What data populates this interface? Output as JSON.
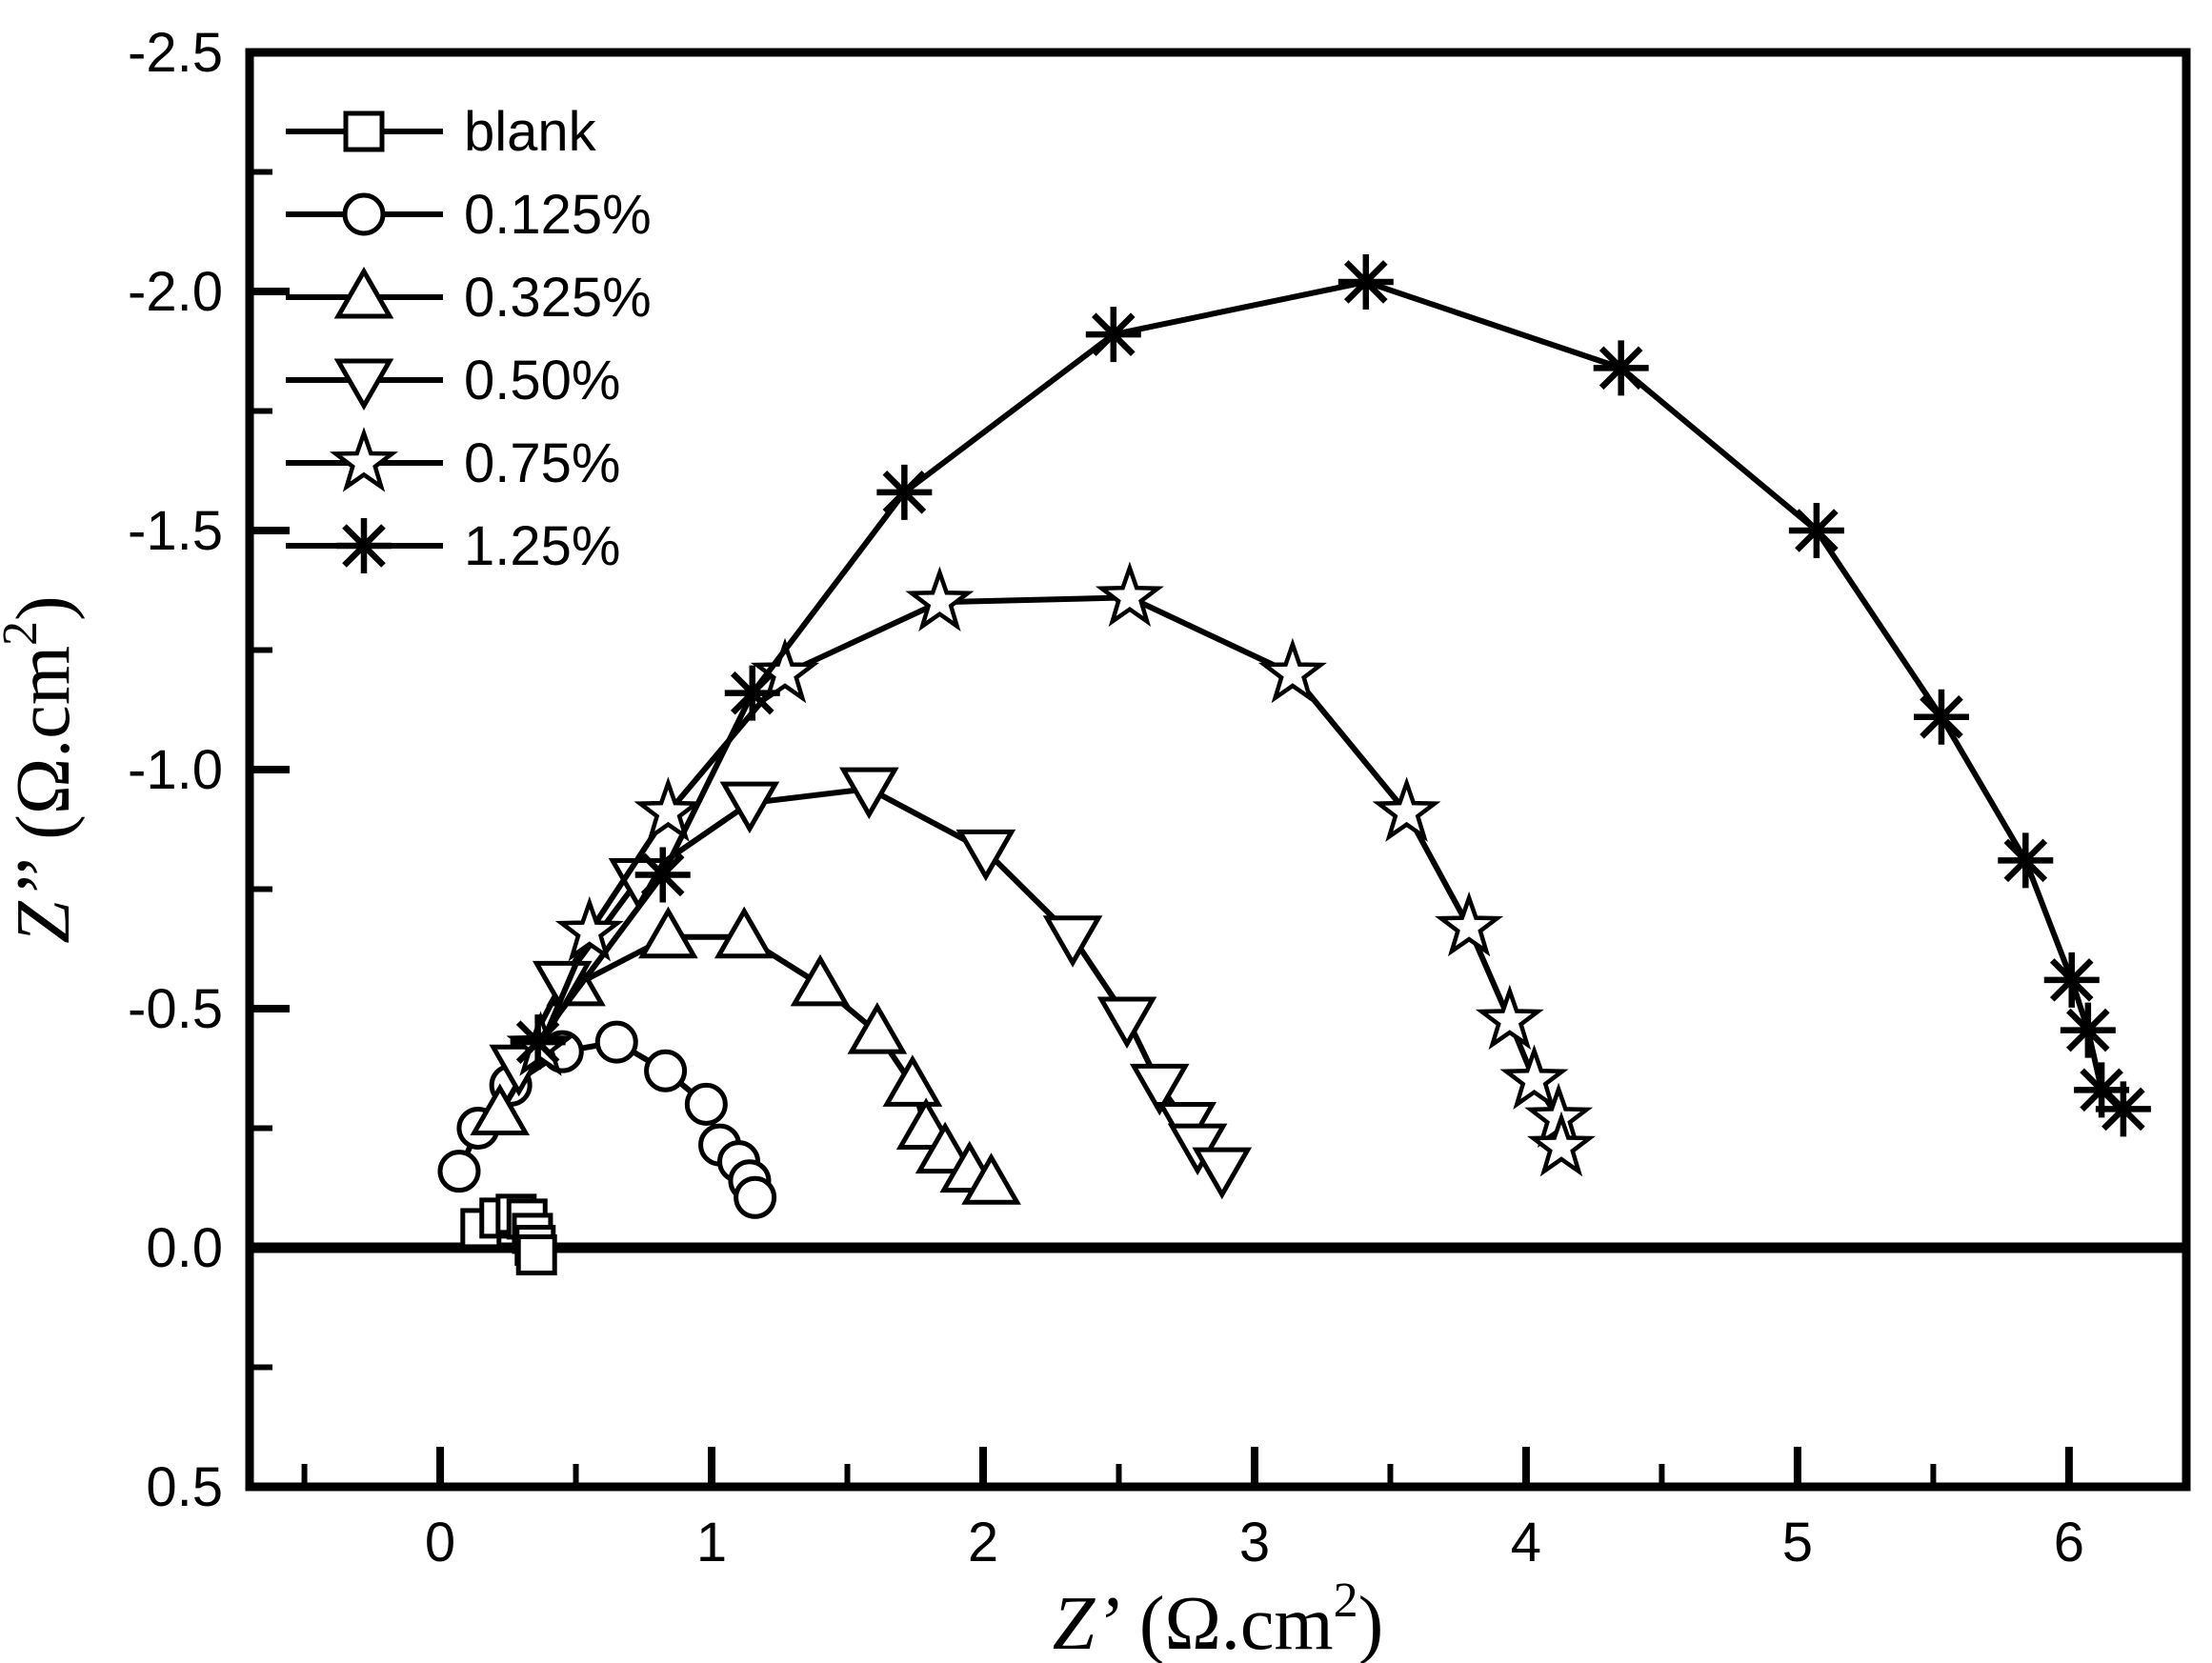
{
  "figure": {
    "background_color": "#ffffff",
    "ink_color": "#000000",
    "title": ""
  },
  "chart_data": {
    "type": "line",
    "subtype": "nyquist-impedance-scatter-line",
    "title": "",
    "xlabel": "Z' (Ω.cm2)",
    "ylabel": "Z'' (Ω.cm2)",
    "xlabel_parts": {
      "z": "Z’",
      "pre": " (Ω.cm",
      "sup": "2",
      "post": ")"
    },
    "ylabel_parts": {
      "z": "Z’’",
      "pre": " (Ω.cm",
      "sup": "2",
      "post": ")"
    },
    "xlim": [
      -0.702,
      6.432
    ],
    "ylim": [
      -2.5,
      0.5
    ],
    "y_axis_inverted": true,
    "grid": false,
    "zero_line": 0.0,
    "x_ticks": [
      0,
      1,
      2,
      3,
      4,
      5,
      6
    ],
    "x_tick_labels": [
      "0",
      "1",
      "2",
      "3",
      "4",
      "5",
      "6"
    ],
    "x_minor_ticks": [
      -0.5,
      0.5,
      1.5,
      2.5,
      3.5,
      4.5,
      5.5
    ],
    "y_ticks": [
      -2.5,
      -2.0,
      -1.5,
      -1.0,
      -0.5,
      0.0,
      0.5
    ],
    "y_tick_labels": [
      "-2.5",
      "-2.0",
      "-1.5",
      "-1.0",
      "-0.5",
      "0.0",
      "0.5"
    ],
    "y_minor_ticks": [
      -2.25,
      -1.75,
      -1.25,
      -0.75,
      -0.25,
      0.25
    ],
    "legend_position": "top-left",
    "series": [
      {
        "name": "blank",
        "marker": "square",
        "points": [
          [
            0.15,
            -0.04
          ],
          [
            0.22,
            -0.062
          ],
          [
            0.28,
            -0.07
          ],
          [
            0.32,
            -0.06
          ],
          [
            0.34,
            -0.03
          ],
          [
            0.35,
            -0.005
          ],
          [
            0.355,
            0.015
          ]
        ]
      },
      {
        "name": "0.125%",
        "marker": "circle",
        "points": [
          [
            0.07,
            -0.16
          ],
          [
            0.14,
            -0.25
          ],
          [
            0.26,
            -0.34
          ],
          [
            0.45,
            -0.41
          ],
          [
            0.65,
            -0.43
          ],
          [
            0.83,
            -0.37
          ],
          [
            0.98,
            -0.3
          ],
          [
            1.03,
            -0.215
          ],
          [
            1.1,
            -0.18
          ],
          [
            1.14,
            -0.14
          ],
          [
            1.16,
            -0.105
          ]
        ]
      },
      {
        "name": "0.325%",
        "marker": "triangle-up",
        "points": [
          [
            0.22,
            -0.28
          ],
          [
            0.5,
            -0.55
          ],
          [
            0.84,
            -0.65
          ],
          [
            1.12,
            -0.65
          ],
          [
            1.4,
            -0.55
          ],
          [
            1.61,
            -0.45
          ],
          [
            1.74,
            -0.34
          ],
          [
            1.79,
            -0.25
          ],
          [
            1.86,
            -0.2
          ],
          [
            1.95,
            -0.16
          ],
          [
            2.03,
            -0.135
          ]
        ]
      },
      {
        "name": "0.50%",
        "marker": "triangle-down",
        "points": [
          [
            0.29,
            -0.38
          ],
          [
            0.45,
            -0.555
          ],
          [
            0.73,
            -0.77
          ],
          [
            1.14,
            -0.93
          ],
          [
            1.58,
            -0.96
          ],
          [
            2.01,
            -0.83
          ],
          [
            2.33,
            -0.65
          ],
          [
            2.53,
            -0.48
          ],
          [
            2.65,
            -0.34
          ],
          [
            2.75,
            -0.26
          ],
          [
            2.79,
            -0.215
          ],
          [
            2.88,
            -0.165
          ]
        ]
      },
      {
        "name": "0.75%",
        "marker": "star",
        "points": [
          [
            0.37,
            -0.42
          ],
          [
            0.55,
            -0.66
          ],
          [
            0.84,
            -0.91
          ],
          [
            1.27,
            -1.2
          ],
          [
            1.84,
            -1.35
          ],
          [
            2.54,
            -1.36
          ],
          [
            3.14,
            -1.2
          ],
          [
            3.56,
            -0.91
          ],
          [
            3.79,
            -0.67
          ],
          [
            3.94,
            -0.475
          ],
          [
            4.03,
            -0.35
          ],
          [
            4.12,
            -0.27
          ],
          [
            4.13,
            -0.21
          ]
        ]
      },
      {
        "name": "1.25%",
        "marker": "asterisk",
        "points": [
          [
            0.36,
            -0.43
          ],
          [
            0.82,
            -0.78
          ],
          [
            1.15,
            -1.16
          ],
          [
            1.71,
            -1.58
          ],
          [
            2.48,
            -1.91
          ],
          [
            3.41,
            -2.02
          ],
          [
            4.35,
            -1.84
          ],
          [
            5.07,
            -1.5
          ],
          [
            5.53,
            -1.11
          ],
          [
            5.84,
            -0.81
          ],
          [
            6.01,
            -0.56
          ],
          [
            6.07,
            -0.455
          ],
          [
            6.12,
            -0.33
          ],
          [
            6.2,
            -0.29
          ]
        ]
      }
    ]
  }
}
